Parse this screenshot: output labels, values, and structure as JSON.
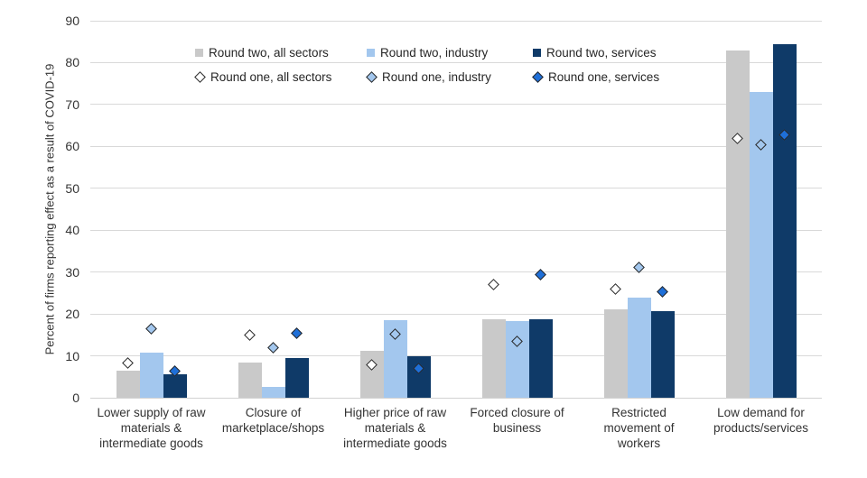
{
  "chart_data": {
    "type": "bar",
    "subtype": "grouped bars (round two) with diamond scatter markers overlaid (round one)",
    "title": "",
    "xlabel": "",
    "ylabel": "Percent of firms reporting effect as a result of COVID-19",
    "ylim": [
      0,
      90
    ],
    "yticks": [
      0,
      10,
      20,
      30,
      40,
      50,
      60,
      70,
      80,
      90
    ],
    "grid": true,
    "legend_position": "top, two rows inside plot area",
    "categories": [
      "Lower supply of raw\nmaterials &\nintermediate goods",
      "Closure of\nmarketplace/shops",
      "Higher price of raw\nmaterials &\nintermediate goods",
      "Forced closure of\nbusiness",
      "Restricted\nmovement of\nworkers",
      "Low demand for\nproducts/services"
    ],
    "bar_series": [
      {
        "name": "Round two, all sectors",
        "color": "#c9c9c9",
        "values": [
          6.5,
          8.4,
          11.1,
          18.7,
          21.0,
          82.9
        ]
      },
      {
        "name": "Round two, industry",
        "color": "#a3c7ee",
        "values": [
          10.7,
          2.5,
          18.6,
          18.4,
          24.0,
          73.1
        ]
      },
      {
        "name": "Round two, services",
        "color": "#0f3a68",
        "values": [
          5.6,
          9.4,
          9.9,
          18.8,
          20.6,
          84.5
        ]
      }
    ],
    "marker_series": [
      {
        "name": "Round one, all sectors",
        "fill": "#ffffff",
        "values": [
          8.3,
          15.0,
          7.8,
          27.0,
          26.0,
          62.0
        ]
      },
      {
        "name": "Round one, industry",
        "fill": "#a3c7ee",
        "values": [
          16.5,
          12.0,
          15.2,
          13.5,
          31.2,
          60.3
        ]
      },
      {
        "name": "Round one, services",
        "fill": "#1e6fd8",
        "values": [
          6.3,
          15.5,
          6.9,
          29.4,
          25.2,
          62.8
        ]
      }
    ],
    "colors": {
      "gridline": "#d9d9d9",
      "axis_text": "#333333",
      "marker_outline": "#262626"
    }
  }
}
